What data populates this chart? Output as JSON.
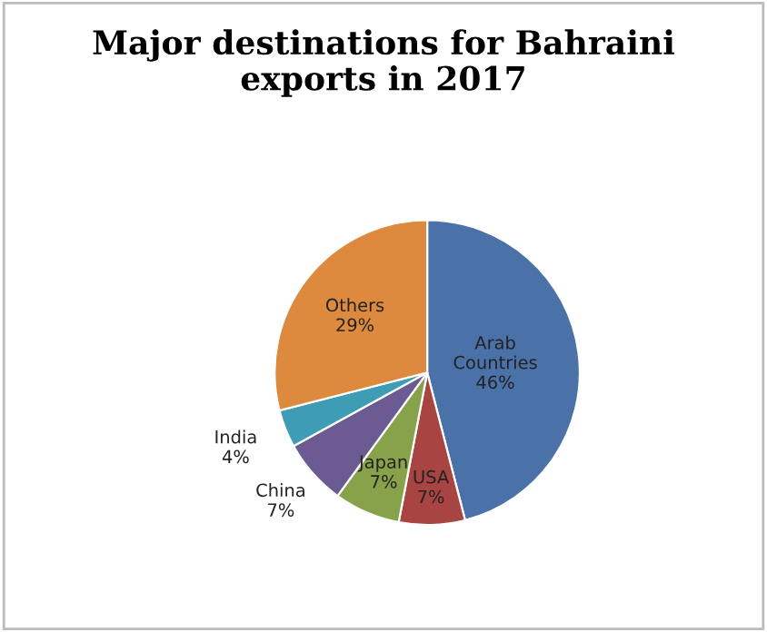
{
  "chart_data": {
    "type": "pie",
    "title": "Major destinations for Bahraini\nexports in 2017",
    "categories": [
      "Arab Countries",
      "USA",
      "Japan",
      "China",
      "India",
      "Others"
    ],
    "values": [
      46,
      7,
      7,
      7,
      4,
      29
    ],
    "value_labels": [
      "46%",
      "7%",
      "7%",
      "7%",
      "4%",
      "29%"
    ],
    "colors": [
      "#4a72a8",
      "#a84442",
      "#87a24a",
      "#6c5a92",
      "#3e9cb5",
      "#dd8a3e"
    ],
    "legend": false
  }
}
